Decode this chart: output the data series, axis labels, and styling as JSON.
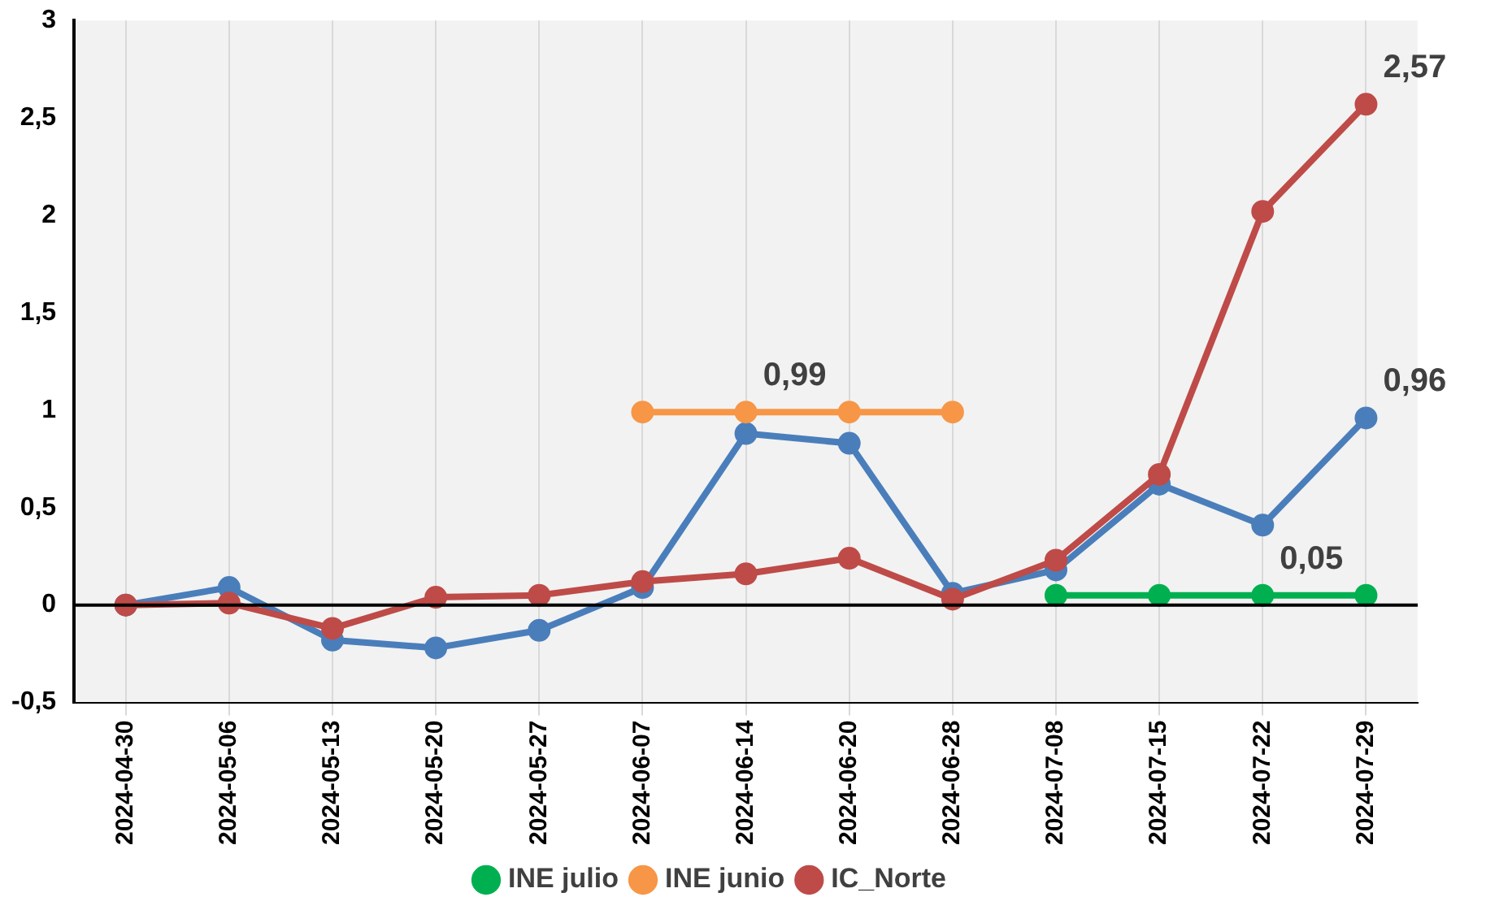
{
  "chart_data": {
    "type": "line",
    "categories": [
      "2024-04-30",
      "2024-05-06",
      "2024-05-13",
      "2024-05-20",
      "2024-05-27",
      "2024-06-07",
      "2024-06-14",
      "2024-06-20",
      "2024-06-28",
      "2024-07-08",
      "2024-07-15",
      "2024-07-22",
      "2024-07-29"
    ],
    "series": [
      {
        "color": "#4a7ebb",
        "values": [
          0,
          0.09,
          -0.18,
          -0.22,
          -0.13,
          0.09,
          0.88,
          0.83,
          0.06,
          0.18,
          0.62,
          0.41,
          0.96
        ]
      },
      {
        "name": "IC_Norte",
        "color": "#be4b48",
        "values": [
          0,
          0.01,
          -0.12,
          0.04,
          0.05,
          0.12,
          0.16,
          0.24,
          0.03,
          0.23,
          0.67,
          2.02,
          2.57
        ]
      },
      {
        "name": "INE junio",
        "color": "#f79646",
        "values": [
          null,
          null,
          null,
          null,
          null,
          0.99,
          0.99,
          0.99,
          0.99,
          null,
          null,
          null,
          null
        ]
      },
      {
        "name": "INE julio",
        "color": "#00b050",
        "values": [
          null,
          null,
          null,
          null,
          null,
          null,
          null,
          null,
          null,
          0.05,
          0.05,
          0.05,
          0.05
        ]
      }
    ],
    "ylim": [
      -0.5,
      3
    ],
    "yticks": [
      {
        "value": -0.5,
        "label": "-0,5"
      },
      0,
      {
        "value": 0.5,
        "label": "0,5"
      },
      1,
      {
        "value": 1.5,
        "label": "1,5"
      },
      2,
      {
        "value": 2.5,
        "label": "2,5"
      },
      3
    ],
    "annotations": [
      {
        "text": "0,99",
        "x": "2024-06-14",
        "y": 0.99
      },
      {
        "text": "0,05",
        "x": "2024-07-22",
        "y": 0.05
      },
      {
        "text": "2,57",
        "x": "2024-07-29",
        "y": 2.57
      },
      {
        "text": "0,96",
        "x": "2024-07-29",
        "y": 0.96
      }
    ],
    "ref_lines": [
      {
        "axis": "y",
        "value": 0,
        "color": "#000000"
      }
    ],
    "grid": "x",
    "legend": "bottom",
    "marker": "circle",
    "line_style": "solid"
  }
}
